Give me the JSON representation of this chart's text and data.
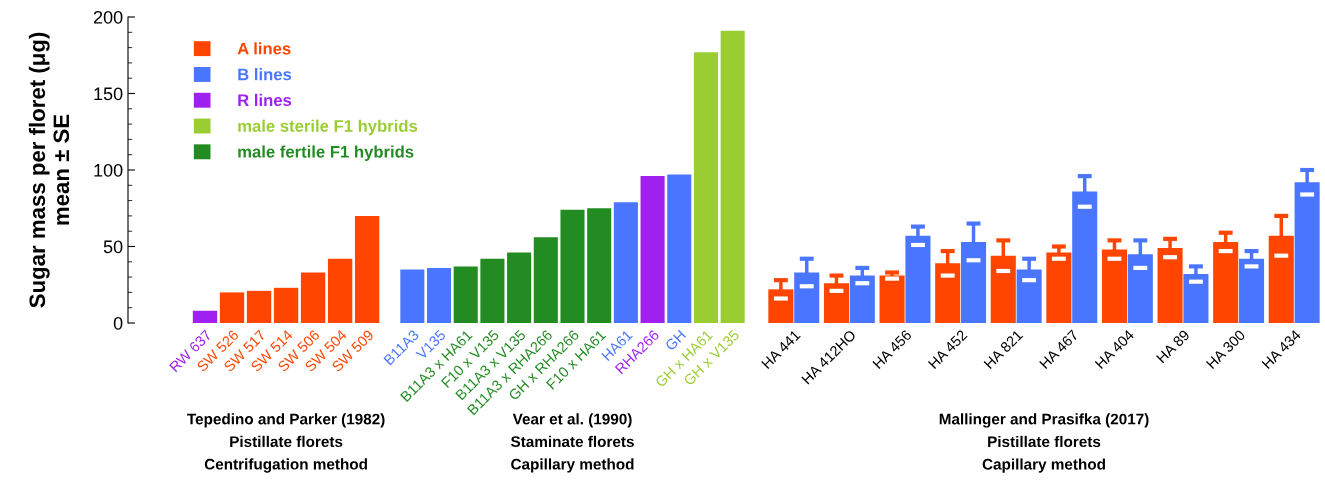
{
  "chart_data": [
    {
      "type": "bar",
      "ylabel": "Sugar mass per floret (μg)\nmean ± SE",
      "categories": [
        "RW 637",
        "SW 526",
        "SW 517",
        "SW 514",
        "SW 506",
        "SW 504",
        "SW 509"
      ],
      "series": [
        {
          "name": "A lines",
          "color": "#ff4500",
          "values": [
            null,
            20,
            21,
            23,
            33,
            42,
            70
          ]
        },
        {
          "name": "B lines",
          "color": "#4a76ff",
          "values": [
            null,
            null,
            null,
            null,
            null,
            null,
            null
          ]
        },
        {
          "name": "R lines",
          "color": "#a020f0",
          "values": [
            8,
            null,
            null,
            null,
            null,
            null,
            null
          ]
        },
        {
          "name": "male sterile F1 hybrids",
          "color": "#9acd32",
          "values": [
            null,
            null,
            null,
            null,
            null,
            null,
            null
          ]
        },
        {
          "name": "male fertile F1 hybrids",
          "color": "#228b22",
          "values": [
            null,
            null,
            null,
            null,
            null,
            null,
            null
          ]
        }
      ],
      "ylim": [
        0,
        200
      ],
      "yticks": [
        0,
        50,
        100,
        150,
        200
      ],
      "legend": "top right",
      "grid": false,
      "annotations": [
        "Tepedino and Parker (1982)\nPistillate florets\nCentrifugation method"
      ]
    },
    {
      "type": "bar",
      "categories": [
        "B11A3",
        "V135",
        "B11A3 x HA61",
        "F10 x V135",
        "B11A3 x V135",
        "B11A3 x RHA266",
        "GH x RHA266",
        "F10 x HA61",
        "HA61",
        "RHA266",
        "GH",
        "GH x HA61",
        "GH x V135"
      ],
      "series": [
        {
          "color": "#4a76ff",
          "values": [
            35,
            36,
            null,
            null,
            null,
            null,
            null,
            null,
            79,
            null,
            97,
            null,
            null
          ]
        },
        {
          "color": "#a020f0",
          "values": [
            null,
            null,
            null,
            null,
            null,
            null,
            null,
            null,
            null,
            96,
            null,
            null,
            null
          ]
        },
        {
          "color": "#9acd32",
          "values": [
            null,
            null,
            null,
            null,
            null,
            null,
            null,
            null,
            null,
            null,
            null,
            177,
            191
          ]
        },
        {
          "color": "#228b22",
          "values": [
            null,
            null,
            37,
            42,
            46,
            56,
            74,
            75,
            null,
            null,
            null,
            null,
            null
          ]
        }
      ],
      "ylim": [
        0,
        200
      ],
      "tick_labels": "x",
      "grid": false,
      "annotations": [
        "Vear et al. (1990)\nStaminate florets\nCapillary method"
      ]
    },
    {
      "type": "bar",
      "categories": [
        "HA 441",
        "HA 412HO",
        "HA 456",
        "HA 452",
        "HA 821",
        "HA 467",
        "HA 404",
        "HA 89",
        "HA 300",
        "HA 434"
      ],
      "series": [
        {
          "color": "#ff4500",
          "values": [
            22,
            26,
            31,
            39,
            44,
            46,
            48,
            49,
            53,
            57
          ],
          "errors": [
            6,
            5,
            2,
            8,
            10,
            4,
            6,
            6,
            6,
            13
          ]
        },
        {
          "color": "#4a76ff",
          "values": [
            33,
            31,
            57,
            53,
            35,
            86,
            45,
            32,
            42,
            92
          ],
          "errors": [
            9,
            5,
            6,
            12,
            7,
            10,
            9,
            5,
            5,
            8
          ]
        }
      ],
      "ylim": [
        0,
        200
      ],
      "tick_labels": "x",
      "grid": false,
      "annotations": [
        "Mallinger and Prasifka (2017)\nPistillate florets\nCapillary method"
      ]
    }
  ]
}
